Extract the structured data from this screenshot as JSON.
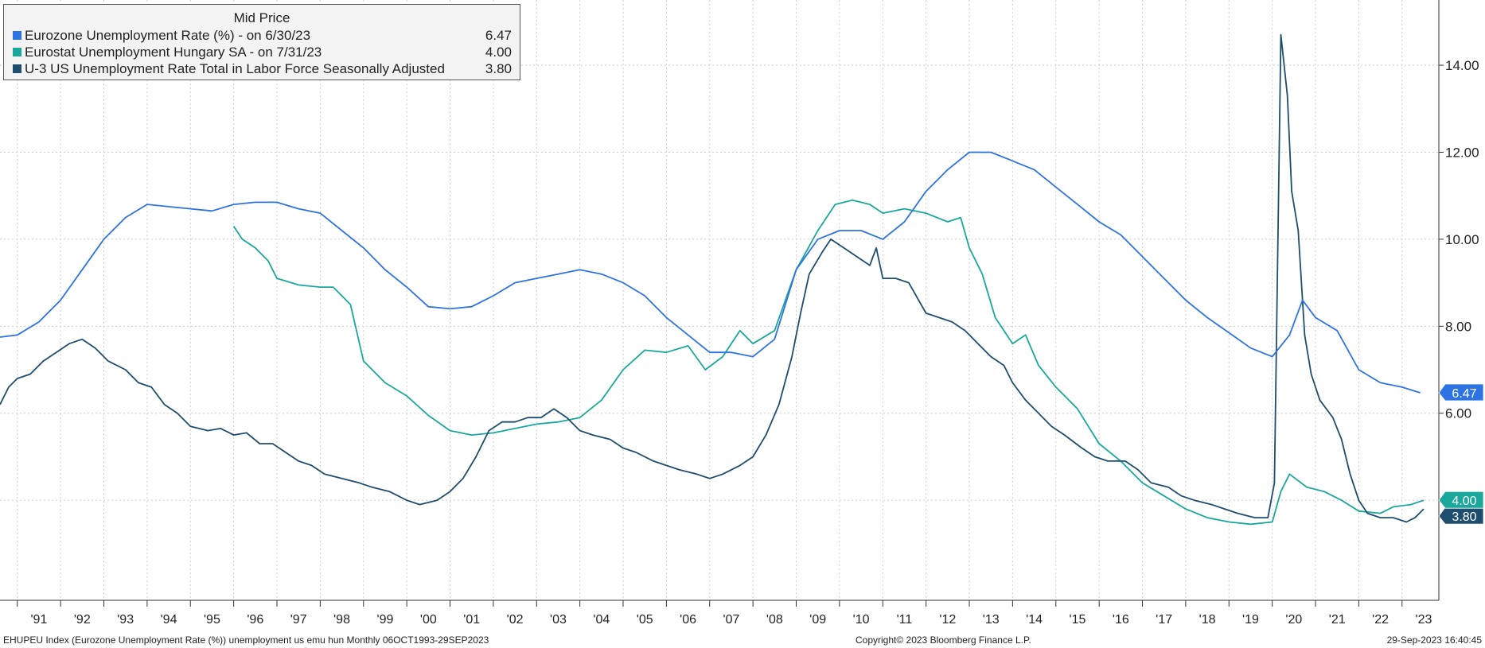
{
  "chart_data": {
    "type": "line",
    "legend": {
      "title": "Mid Price",
      "entries": [
        {
          "label": "Eurozone Unemployment Rate (%)  -  on 6/30/23",
          "value": "6.47"
        },
        {
          "label": "Eurostat Unemployment Hungary SA  -  on 7/31/23",
          "value": "4.00"
        },
        {
          "label": "U-3 US Unemployment Rate Total in Labor Force Seasonally Adjusted",
          "value": "3.80"
        }
      ]
    },
    "x_ticks": [
      "'91",
      "'92",
      "'93",
      "'94",
      "'95",
      "'96",
      "'97",
      "'98",
      "'99",
      "'00",
      "'01",
      "'02",
      "'03",
      "'04",
      "'05",
      "'06",
      "'07",
      "'08",
      "'09",
      "'10",
      "'11",
      "'12",
      "'13",
      "'14",
      "'15",
      "'16",
      "'17",
      "'18",
      "'19",
      "'20",
      "'21",
      "'22",
      "'23"
    ],
    "y_ticks": [
      "6.00",
      "8.00",
      "10.00",
      "12.00",
      "14.00"
    ],
    "xlim": [
      1990.6,
      2023.85
    ],
    "ylim": [
      1.7,
      15.5
    ],
    "grid": true,
    "series": [
      {
        "name": "Eurozone Unemployment Rate (%)",
        "color": "#2e73e3",
        "end_label": "6.47",
        "points": [
          [
            1990.6,
            7.75
          ],
          [
            1991.0,
            7.8
          ],
          [
            1991.5,
            8.1
          ],
          [
            1992.0,
            8.6
          ],
          [
            1992.5,
            9.3
          ],
          [
            1993.0,
            10.0
          ],
          [
            1993.5,
            10.5
          ],
          [
            1994.0,
            10.8
          ],
          [
            1994.5,
            10.75
          ],
          [
            1995.0,
            10.7
          ],
          [
            1995.5,
            10.65
          ],
          [
            1996.0,
            10.8
          ],
          [
            1996.5,
            10.85
          ],
          [
            1997.0,
            10.85
          ],
          [
            1997.5,
            10.7
          ],
          [
            1998.0,
            10.6
          ],
          [
            1998.5,
            10.2
          ],
          [
            1999.0,
            9.8
          ],
          [
            1999.5,
            9.3
          ],
          [
            2000.0,
            8.9
          ],
          [
            2000.5,
            8.45
          ],
          [
            2001.0,
            8.4
          ],
          [
            2001.5,
            8.45
          ],
          [
            2002.0,
            8.7
          ],
          [
            2002.5,
            9.0
          ],
          [
            2003.0,
            9.1
          ],
          [
            2003.5,
            9.2
          ],
          [
            2004.0,
            9.3
          ],
          [
            2004.5,
            9.2
          ],
          [
            2005.0,
            9.0
          ],
          [
            2005.5,
            8.7
          ],
          [
            2006.0,
            8.2
          ],
          [
            2006.5,
            7.8
          ],
          [
            2007.0,
            7.4
          ],
          [
            2007.5,
            7.4
          ],
          [
            2008.0,
            7.3
          ],
          [
            2008.5,
            7.7
          ],
          [
            2009.0,
            9.3
          ],
          [
            2009.5,
            10.0
          ],
          [
            2010.0,
            10.2
          ],
          [
            2010.5,
            10.2
          ],
          [
            2011.0,
            10.0
          ],
          [
            2011.5,
            10.4
          ],
          [
            2012.0,
            11.1
          ],
          [
            2012.5,
            11.6
          ],
          [
            2013.0,
            12.0
          ],
          [
            2013.5,
            12.0
          ],
          [
            2014.0,
            11.8
          ],
          [
            2014.5,
            11.6
          ],
          [
            2015.0,
            11.2
          ],
          [
            2015.5,
            10.8
          ],
          [
            2016.0,
            10.4
          ],
          [
            2016.5,
            10.1
          ],
          [
            2017.0,
            9.6
          ],
          [
            2017.5,
            9.1
          ],
          [
            2018.0,
            8.6
          ],
          [
            2018.5,
            8.2
          ],
          [
            2019.0,
            7.85
          ],
          [
            2019.5,
            7.5
          ],
          [
            2020.0,
            7.3
          ],
          [
            2020.4,
            7.8
          ],
          [
            2020.7,
            8.6
          ],
          [
            2021.0,
            8.2
          ],
          [
            2021.5,
            7.9
          ],
          [
            2022.0,
            7.0
          ],
          [
            2022.5,
            6.7
          ],
          [
            2023.0,
            6.6
          ],
          [
            2023.42,
            6.47
          ]
        ]
      },
      {
        "name": "Eurostat Unemployment Hungary SA",
        "color": "#1aa89c",
        "end_label": "4.00",
        "points": [
          [
            1996.0,
            10.3
          ],
          [
            1996.2,
            10.0
          ],
          [
            1996.5,
            9.8
          ],
          [
            1996.8,
            9.5
          ],
          [
            1997.0,
            9.1
          ],
          [
            1997.5,
            8.95
          ],
          [
            1998.0,
            8.9
          ],
          [
            1998.3,
            8.9
          ],
          [
            1998.7,
            8.5
          ],
          [
            1999.0,
            7.2
          ],
          [
            1999.5,
            6.7
          ],
          [
            2000.0,
            6.4
          ],
          [
            2000.5,
            5.95
          ],
          [
            2001.0,
            5.6
          ],
          [
            2001.5,
            5.5
          ],
          [
            2002.0,
            5.55
          ],
          [
            2002.5,
            5.65
          ],
          [
            2003.0,
            5.75
          ],
          [
            2003.5,
            5.8
          ],
          [
            2004.0,
            5.9
          ],
          [
            2004.5,
            6.3
          ],
          [
            2005.0,
            7.0
          ],
          [
            2005.5,
            7.45
          ],
          [
            2006.0,
            7.4
          ],
          [
            2006.5,
            7.55
          ],
          [
            2006.9,
            7.0
          ],
          [
            2007.3,
            7.3
          ],
          [
            2007.7,
            7.9
          ],
          [
            2008.0,
            7.6
          ],
          [
            2008.5,
            7.9
          ],
          [
            2009.0,
            9.3
          ],
          [
            2009.5,
            10.2
          ],
          [
            2009.9,
            10.8
          ],
          [
            2010.3,
            10.9
          ],
          [
            2010.7,
            10.8
          ],
          [
            2011.0,
            10.6
          ],
          [
            2011.5,
            10.7
          ],
          [
            2012.0,
            10.6
          ],
          [
            2012.5,
            10.4
          ],
          [
            2012.8,
            10.5
          ],
          [
            2013.0,
            9.8
          ],
          [
            2013.3,
            9.2
          ],
          [
            2013.6,
            8.2
          ],
          [
            2014.0,
            7.6
          ],
          [
            2014.3,
            7.8
          ],
          [
            2014.6,
            7.1
          ],
          [
            2015.0,
            6.6
          ],
          [
            2015.5,
            6.1
          ],
          [
            2016.0,
            5.3
          ],
          [
            2016.5,
            4.9
          ],
          [
            2017.0,
            4.4
          ],
          [
            2017.5,
            4.1
          ],
          [
            2018.0,
            3.8
          ],
          [
            2018.5,
            3.6
          ],
          [
            2019.0,
            3.5
          ],
          [
            2019.5,
            3.45
          ],
          [
            2020.0,
            3.5
          ],
          [
            2020.2,
            4.2
          ],
          [
            2020.4,
            4.6
          ],
          [
            2020.8,
            4.3
          ],
          [
            2021.2,
            4.2
          ],
          [
            2021.6,
            4.0
          ],
          [
            2022.0,
            3.75
          ],
          [
            2022.5,
            3.7
          ],
          [
            2022.8,
            3.85
          ],
          [
            2023.2,
            3.9
          ],
          [
            2023.5,
            4.0
          ]
        ]
      },
      {
        "name": "U-3 US Unemployment Rate Total in Labor Force Seasonally Adjusted",
        "color": "#1f4d6e",
        "end_label": "3.80",
        "points": [
          [
            1990.6,
            6.2
          ],
          [
            1990.8,
            6.6
          ],
          [
            1991.0,
            6.8
          ],
          [
            1991.3,
            6.9
          ],
          [
            1991.6,
            7.2
          ],
          [
            1991.9,
            7.4
          ],
          [
            1992.2,
            7.6
          ],
          [
            1992.5,
            7.7
          ],
          [
            1992.8,
            7.5
          ],
          [
            1993.1,
            7.2
          ],
          [
            1993.5,
            7.0
          ],
          [
            1993.8,
            6.7
          ],
          [
            1994.1,
            6.6
          ],
          [
            1994.4,
            6.2
          ],
          [
            1994.7,
            6.0
          ],
          [
            1995.0,
            5.7
          ],
          [
            1995.4,
            5.6
          ],
          [
            1995.7,
            5.65
          ],
          [
            1996.0,
            5.5
          ],
          [
            1996.3,
            5.55
          ],
          [
            1996.6,
            5.3
          ],
          [
            1996.9,
            5.3
          ],
          [
            1997.2,
            5.1
          ],
          [
            1997.5,
            4.9
          ],
          [
            1997.8,
            4.8
          ],
          [
            1998.1,
            4.6
          ],
          [
            1998.5,
            4.5
          ],
          [
            1998.9,
            4.4
          ],
          [
            1999.2,
            4.3
          ],
          [
            1999.6,
            4.2
          ],
          [
            2000.0,
            4.0
          ],
          [
            2000.3,
            3.9
          ],
          [
            2000.7,
            4.0
          ],
          [
            2001.0,
            4.2
          ],
          [
            2001.3,
            4.5
          ],
          [
            2001.6,
            5.0
          ],
          [
            2001.9,
            5.6
          ],
          [
            2002.2,
            5.8
          ],
          [
            2002.5,
            5.8
          ],
          [
            2002.8,
            5.9
          ],
          [
            2003.1,
            5.9
          ],
          [
            2003.4,
            6.1
          ],
          [
            2003.7,
            5.9
          ],
          [
            2004.0,
            5.6
          ],
          [
            2004.3,
            5.5
          ],
          [
            2004.7,
            5.4
          ],
          [
            2005.0,
            5.2
          ],
          [
            2005.3,
            5.1
          ],
          [
            2005.7,
            4.9
          ],
          [
            2006.0,
            4.8
          ],
          [
            2006.3,
            4.7
          ],
          [
            2006.7,
            4.6
          ],
          [
            2007.0,
            4.5
          ],
          [
            2007.3,
            4.6
          ],
          [
            2007.7,
            4.8
          ],
          [
            2008.0,
            5.0
          ],
          [
            2008.3,
            5.5
          ],
          [
            2008.6,
            6.2
          ],
          [
            2008.9,
            7.3
          ],
          [
            2009.1,
            8.3
          ],
          [
            2009.3,
            9.2
          ],
          [
            2009.6,
            9.7
          ],
          [
            2009.8,
            10.0
          ],
          [
            2010.1,
            9.8
          ],
          [
            2010.4,
            9.6
          ],
          [
            2010.7,
            9.4
          ],
          [
            2010.85,
            9.8
          ],
          [
            2011.0,
            9.1
          ],
          [
            2011.3,
            9.1
          ],
          [
            2011.6,
            9.0
          ],
          [
            2012.0,
            8.3
          ],
          [
            2012.3,
            8.2
          ],
          [
            2012.6,
            8.1
          ],
          [
            2012.9,
            7.9
          ],
          [
            2013.2,
            7.6
          ],
          [
            2013.5,
            7.3
          ],
          [
            2013.8,
            7.1
          ],
          [
            2014.0,
            6.7
          ],
          [
            2014.3,
            6.3
          ],
          [
            2014.6,
            6.0
          ],
          [
            2014.9,
            5.7
          ],
          [
            2015.2,
            5.5
          ],
          [
            2015.6,
            5.2
          ],
          [
            2015.9,
            5.0
          ],
          [
            2016.2,
            4.9
          ],
          [
            2016.6,
            4.9
          ],
          [
            2016.9,
            4.7
          ],
          [
            2017.2,
            4.4
          ],
          [
            2017.6,
            4.3
          ],
          [
            2017.9,
            4.1
          ],
          [
            2018.2,
            4.0
          ],
          [
            2018.6,
            3.9
          ],
          [
            2018.9,
            3.8
          ],
          [
            2019.2,
            3.7
          ],
          [
            2019.6,
            3.6
          ],
          [
            2019.9,
            3.6
          ],
          [
            2020.05,
            4.4
          ],
          [
            2020.2,
            14.7
          ],
          [
            2020.35,
            13.3
          ],
          [
            2020.45,
            11.1
          ],
          [
            2020.6,
            10.2
          ],
          [
            2020.75,
            7.8
          ],
          [
            2020.9,
            6.9
          ],
          [
            2021.1,
            6.3
          ],
          [
            2021.4,
            5.9
          ],
          [
            2021.6,
            5.4
          ],
          [
            2021.8,
            4.6
          ],
          [
            2022.0,
            4.0
          ],
          [
            2022.2,
            3.7
          ],
          [
            2022.5,
            3.6
          ],
          [
            2022.8,
            3.6
          ],
          [
            2023.1,
            3.5
          ],
          [
            2023.3,
            3.6
          ],
          [
            2023.5,
            3.8
          ]
        ]
      }
    ]
  },
  "footer": {
    "left": "EHUPEU Index (Eurozone Unemployment Rate (%)) unemployment us emu hun  Monthly 06OCT1993-29SEP2023",
    "center": "Copyright© 2023 Bloomberg Finance L.P.",
    "right": "29-Sep-2023 16:40:45"
  }
}
